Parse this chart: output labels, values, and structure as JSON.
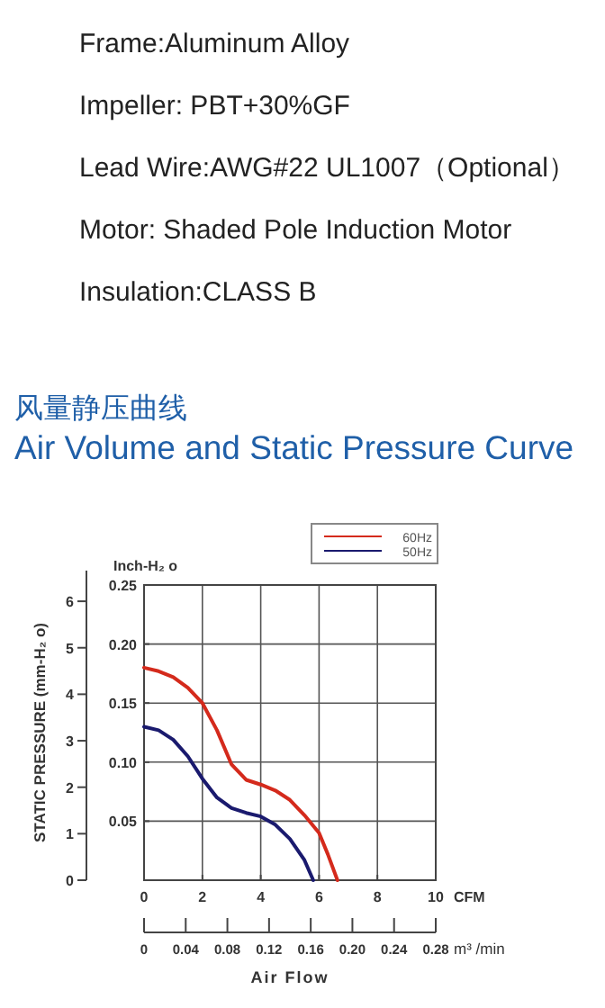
{
  "chart_data": {
    "type": "line",
    "title": "风量静压曲线",
    "subtitle": "Air Volume and Static Pressure Curve",
    "annotations": [
      "Frame:Aluminum Alloy",
      "Impeller: PBT+30%GF",
      "Lead Wire:AWG#22 UL1007（Optional）",
      "Motor: Shaded Pole Induction Motor",
      "Insulation:CLASS B",
      "Air Flow"
    ],
    "xlabel": "CFM",
    "ylabel": "Inch-H₂ o",
    "y2label": "STATIC PRESSURE (mm-H₂ o)",
    "x2label": "m³ /min",
    "xlim": [
      0,
      10
    ],
    "xticks": [
      0,
      2,
      4,
      6,
      8,
      10
    ],
    "ylim": [
      0,
      0.25
    ],
    "yticks": [
      {
        "value": 0,
        "label": null
      },
      {
        "value": 0.05,
        "label": "0.05"
      },
      {
        "value": 0.1,
        "label": "0.10"
      },
      {
        "value": 0.15,
        "label": "0.15"
      },
      {
        "value": 0.2,
        "label": "0.20"
      },
      {
        "value": 0.25,
        "label": "0.25"
      }
    ],
    "y2lim": [
      0,
      6.35
    ],
    "y2ticks": [
      0,
      1,
      2,
      3,
      4,
      5,
      6
    ],
    "x2lim": [
      0,
      0.28
    ],
    "x2ticks": [
      0,
      0.04,
      0.08,
      0.12,
      0.16,
      {
        "value": 0.2,
        "label": "0.20"
      },
      0.24,
      0.28
    ],
    "grid": true,
    "legend": "top right",
    "marker": "none",
    "line_style": "solid",
    "series": [
      {
        "name": "60Hz",
        "color": "#d42a1c",
        "x": [
          0,
          0.5,
          1,
          1.5,
          2,
          2.5,
          3,
          3.5,
          4,
          4.5,
          5,
          5.5,
          6,
          6.3,
          6.63
        ],
        "values": [
          0.18,
          0.177,
          0.172,
          0.163,
          0.15,
          0.127,
          0.098,
          0.085,
          0.081,
          0.076,
          0.068,
          0.055,
          0.04,
          0.022,
          0
        ]
      },
      {
        "name": "50Hz",
        "color": "#1a1a6e",
        "x": [
          0,
          0.5,
          1,
          1.5,
          2,
          2.5,
          3,
          3.5,
          4,
          4.5,
          5,
          5.5,
          5.8
        ],
        "values": [
          0.13,
          0.127,
          0.119,
          0.105,
          0.086,
          0.07,
          0.061,
          0.057,
          0.054,
          0.047,
          0.035,
          0.017,
          0
        ]
      }
    ]
  }
}
